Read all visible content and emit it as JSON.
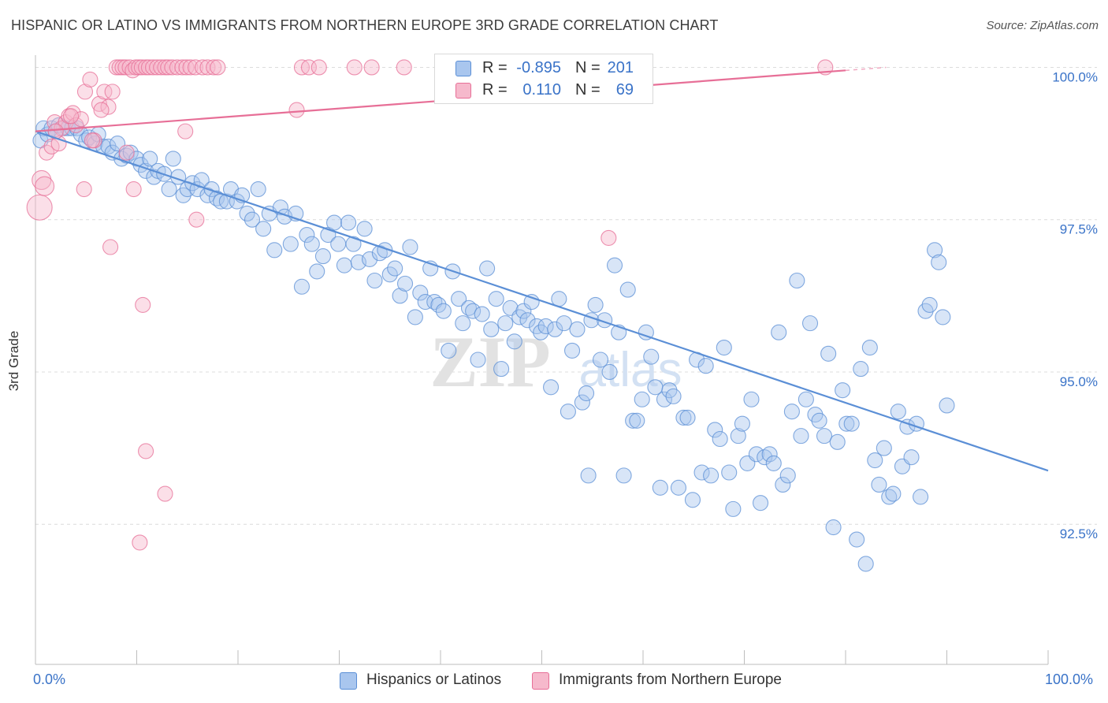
{
  "title": "HISPANIC OR LATINO VS IMMIGRANTS FROM NORTHERN EUROPE 3RD GRADE CORRELATION CHART",
  "source": "Source: ZipAtlas.com",
  "watermark": {
    "zip": "ZIP",
    "atlas": "atlas"
  },
  "colors": {
    "blue": "#5b8fd6",
    "blue_fill": "#a9c6ee",
    "pink": "#e76f97",
    "pink_fill": "#f6b9cc",
    "value_text": "#3a73c8"
  },
  "legend": {
    "rows": [
      {
        "r_label": "R =",
        "r_value": "-0.895",
        "n_label": "N =",
        "n_value": "201"
      },
      {
        "r_label": "R =",
        "r_value": "0.110",
        "n_label": "N =",
        "n_value": "69"
      }
    ]
  },
  "chart_data": {
    "type": "scatter",
    "title": "HISPANIC OR LATINO VS IMMIGRANTS FROM NORTHERN EUROPE 3RD GRADE CORRELATION CHART",
    "xlabel": "",
    "ylabel": "3rd Grade",
    "xlim": [
      0,
      100
    ],
    "ylim": [
      90.2,
      100.2
    ],
    "x_tick_labels": [
      "0.0%",
      "100.0%"
    ],
    "y_ticks": [
      {
        "value": 100.0,
        "label": "100.0%"
      },
      {
        "value": 97.5,
        "label": "97.5%"
      },
      {
        "value": 95.0,
        "label": "95.0%"
      },
      {
        "value": 92.5,
        "label": "92.5%"
      }
    ],
    "grid": true,
    "legend_position": "bottom",
    "series": [
      {
        "name": "Hispanics or Latinos",
        "color": "#5b8fd6",
        "trend": {
          "x": [
            0,
            100
          ],
          "y": [
            98.95,
            93.38
          ]
        },
        "points": [
          [
            0.5,
            98.8
          ],
          [
            0.8,
            99.0
          ],
          [
            1.2,
            98.9
          ],
          [
            1.6,
            99.0
          ],
          [
            2.0,
            98.95
          ],
          [
            2.3,
            99.05
          ],
          [
            2.8,
            99.0
          ],
          [
            3.2,
            99.0
          ],
          [
            3.6,
            99.0
          ],
          [
            4.1,
            99.0
          ],
          [
            4.5,
            98.9
          ],
          [
            5.0,
            98.8
          ],
          [
            5.3,
            98.85
          ],
          [
            5.9,
            98.75
          ],
          [
            6.2,
            98.9
          ],
          [
            6.7,
            98.7
          ],
          [
            7.2,
            98.7
          ],
          [
            7.6,
            98.6
          ],
          [
            8.1,
            98.75
          ],
          [
            8.5,
            98.5
          ],
          [
            9.0,
            98.55
          ],
          [
            9.4,
            98.6
          ],
          [
            10.0,
            98.5
          ],
          [
            10.4,
            98.4
          ],
          [
            10.9,
            98.3
          ],
          [
            11.3,
            98.5
          ],
          [
            11.7,
            98.2
          ],
          [
            12.1,
            98.3
          ],
          [
            12.7,
            98.25
          ],
          [
            13.2,
            98.0
          ],
          [
            13.6,
            98.5
          ],
          [
            14.1,
            98.2
          ],
          [
            14.6,
            97.9
          ],
          [
            15.0,
            98.0
          ],
          [
            15.5,
            98.1
          ],
          [
            16.0,
            98.0
          ],
          [
            16.4,
            98.15
          ],
          [
            17.0,
            97.9
          ],
          [
            17.4,
            98.0
          ],
          [
            17.9,
            97.85
          ],
          [
            18.3,
            97.8
          ],
          [
            18.9,
            97.8
          ],
          [
            19.3,
            98.0
          ],
          [
            19.9,
            97.8
          ],
          [
            20.4,
            97.9
          ],
          [
            20.9,
            97.6
          ],
          [
            21.4,
            97.5
          ],
          [
            22.0,
            98.0
          ],
          [
            22.5,
            97.35
          ],
          [
            23.1,
            97.6
          ],
          [
            23.6,
            97.0
          ],
          [
            24.2,
            97.7
          ],
          [
            24.6,
            97.55
          ],
          [
            25.2,
            97.1
          ],
          [
            25.7,
            97.6
          ],
          [
            26.3,
            96.4
          ],
          [
            26.8,
            97.25
          ],
          [
            27.3,
            97.1
          ],
          [
            27.8,
            96.65
          ],
          [
            28.4,
            96.9
          ],
          [
            28.9,
            97.25
          ],
          [
            29.5,
            97.45
          ],
          [
            29.9,
            97.1
          ],
          [
            30.5,
            96.75
          ],
          [
            30.9,
            97.45
          ],
          [
            31.4,
            97.1
          ],
          [
            31.9,
            96.8
          ],
          [
            32.5,
            97.35
          ],
          [
            33.0,
            96.85
          ],
          [
            33.5,
            96.5
          ],
          [
            34.0,
            96.95
          ],
          [
            34.5,
            97.0
          ],
          [
            35.0,
            96.6
          ],
          [
            35.5,
            96.7
          ],
          [
            36.0,
            96.25
          ],
          [
            36.5,
            96.45
          ],
          [
            37.0,
            97.05
          ],
          [
            37.5,
            95.9
          ],
          [
            38.0,
            96.3
          ],
          [
            38.5,
            96.15
          ],
          [
            39.0,
            96.7
          ],
          [
            39.4,
            96.15
          ],
          [
            39.8,
            96.1
          ],
          [
            40.3,
            96.0
          ],
          [
            40.8,
            95.35
          ],
          [
            41.2,
            96.65
          ],
          [
            41.8,
            96.2
          ],
          [
            42.2,
            95.8
          ],
          [
            42.8,
            96.05
          ],
          [
            43.2,
            96.0
          ],
          [
            43.7,
            95.2
          ],
          [
            44.1,
            95.95
          ],
          [
            44.6,
            96.7
          ],
          [
            45.0,
            95.7
          ],
          [
            45.5,
            96.2
          ],
          [
            46.0,
            95.05
          ],
          [
            46.4,
            95.8
          ],
          [
            46.9,
            96.05
          ],
          [
            47.3,
            95.5
          ],
          [
            47.8,
            95.9
          ],
          [
            48.2,
            96.0
          ],
          [
            48.6,
            95.85
          ],
          [
            49.0,
            96.15
          ],
          [
            49.5,
            95.75
          ],
          [
            49.9,
            95.65
          ],
          [
            50.4,
            95.75
          ],
          [
            50.9,
            94.75
          ],
          [
            51.3,
            95.7
          ],
          [
            51.7,
            96.2
          ],
          [
            52.2,
            95.8
          ],
          [
            52.6,
            94.35
          ],
          [
            53.0,
            95.35
          ],
          [
            53.5,
            95.7
          ],
          [
            54.0,
            94.5
          ],
          [
            54.4,
            94.65
          ],
          [
            54.9,
            95.85
          ],
          [
            55.3,
            96.1
          ],
          [
            55.8,
            95.2
          ],
          [
            56.2,
            95.85
          ],
          [
            56.7,
            95.0
          ],
          [
            57.2,
            96.75
          ],
          [
            57.6,
            95.65
          ],
          [
            58.1,
            93.3
          ],
          [
            58.5,
            96.35
          ],
          [
            59.0,
            94.2
          ],
          [
            59.4,
            94.2
          ],
          [
            59.9,
            94.55
          ],
          [
            60.3,
            95.65
          ],
          [
            60.8,
            95.25
          ],
          [
            61.2,
            94.75
          ],
          [
            61.7,
            93.1
          ],
          [
            62.1,
            94.55
          ],
          [
            62.6,
            94.7
          ],
          [
            63.0,
            94.6
          ],
          [
            63.5,
            93.1
          ],
          [
            64.0,
            94.25
          ],
          [
            64.4,
            94.25
          ],
          [
            64.9,
            92.9
          ],
          [
            65.3,
            95.2
          ],
          [
            65.8,
            93.35
          ],
          [
            66.2,
            95.1
          ],
          [
            66.7,
            93.3
          ],
          [
            67.1,
            94.05
          ],
          [
            67.6,
            93.9
          ],
          [
            68.0,
            95.4
          ],
          [
            68.5,
            93.35
          ],
          [
            68.9,
            92.75
          ],
          [
            69.4,
            93.95
          ],
          [
            69.8,
            94.15
          ],
          [
            70.3,
            93.5
          ],
          [
            70.7,
            94.55
          ],
          [
            71.2,
            93.65
          ],
          [
            71.6,
            92.85
          ],
          [
            72.0,
            93.6
          ],
          [
            72.5,
            93.65
          ],
          [
            72.9,
            93.5
          ],
          [
            73.4,
            95.65
          ],
          [
            73.8,
            93.15
          ],
          [
            74.3,
            93.3
          ],
          [
            74.7,
            94.35
          ],
          [
            75.2,
            96.5
          ],
          [
            75.6,
            93.95
          ],
          [
            76.1,
            94.55
          ],
          [
            76.5,
            95.8
          ],
          [
            77.0,
            94.3
          ],
          [
            77.4,
            94.2
          ],
          [
            77.9,
            93.95
          ],
          [
            78.3,
            95.3
          ],
          [
            78.8,
            92.45
          ],
          [
            79.2,
            93.85
          ],
          [
            79.7,
            94.7
          ],
          [
            80.1,
            94.15
          ],
          [
            80.6,
            94.15
          ],
          [
            81.1,
            92.25
          ],
          [
            81.5,
            95.05
          ],
          [
            82.0,
            91.85
          ],
          [
            82.4,
            95.4
          ],
          [
            82.9,
            93.55
          ],
          [
            83.3,
            93.15
          ],
          [
            83.8,
            93.75
          ],
          [
            84.3,
            92.95
          ],
          [
            84.7,
            93.0
          ],
          [
            85.2,
            94.35
          ],
          [
            85.6,
            93.45
          ],
          [
            86.1,
            94.1
          ],
          [
            86.5,
            93.6
          ],
          [
            87.0,
            94.15
          ],
          [
            87.4,
            92.95
          ],
          [
            87.9,
            96.0
          ],
          [
            88.3,
            96.1
          ],
          [
            88.8,
            97.0
          ],
          [
            89.2,
            96.8
          ],
          [
            89.6,
            95.9
          ],
          [
            90.0,
            94.45
          ],
          [
            54.6,
            93.3
          ]
        ]
      },
      {
        "name": "Immigrants from Northern Europe",
        "color": "#e76f97",
        "trend": {
          "x": [
            0,
            80
          ],
          "y": [
            98.95,
            99.95
          ]
        },
        "points": [
          [
            0.4,
            97.7
          ],
          [
            0.6,
            98.15
          ],
          [
            0.9,
            98.05
          ],
          [
            1.1,
            98.6
          ],
          [
            1.6,
            98.7
          ],
          [
            1.9,
            99.1
          ],
          [
            2.3,
            98.75
          ],
          [
            2.6,
            99.0
          ],
          [
            3.0,
            99.1
          ],
          [
            3.3,
            99.2
          ],
          [
            3.7,
            99.25
          ],
          [
            4.0,
            99.05
          ],
          [
            4.5,
            99.15
          ],
          [
            4.9,
            99.6
          ],
          [
            5.4,
            99.8
          ],
          [
            5.8,
            98.8
          ],
          [
            6.3,
            99.4
          ],
          [
            6.8,
            99.6
          ],
          [
            7.2,
            99.35
          ],
          [
            7.6,
            99.6
          ],
          [
            8.0,
            100.0
          ],
          [
            8.3,
            100.0
          ],
          [
            8.6,
            100.0
          ],
          [
            8.9,
            100.0
          ],
          [
            9.3,
            100.0
          ],
          [
            9.6,
            99.95
          ],
          [
            9.9,
            100.0
          ],
          [
            10.2,
            100.0
          ],
          [
            10.5,
            100.0
          ],
          [
            10.9,
            100.0
          ],
          [
            11.2,
            100.0
          ],
          [
            11.6,
            100.0
          ],
          [
            12.0,
            100.0
          ],
          [
            12.4,
            100.0
          ],
          [
            12.8,
            100.0
          ],
          [
            13.1,
            100.0
          ],
          [
            13.5,
            100.0
          ],
          [
            14.0,
            100.0
          ],
          [
            14.5,
            100.0
          ],
          [
            14.9,
            100.0
          ],
          [
            15.3,
            100.0
          ],
          [
            15.8,
            100.0
          ],
          [
            16.5,
            100.0
          ],
          [
            17.0,
            100.0
          ],
          [
            17.6,
            100.0
          ],
          [
            18.0,
            100.0
          ],
          [
            25.8,
            99.3
          ],
          [
            26.3,
            100.0
          ],
          [
            27.0,
            100.0
          ],
          [
            28.0,
            100.0
          ],
          [
            31.5,
            100.0
          ],
          [
            33.2,
            100.0
          ],
          [
            36.4,
            100.0
          ],
          [
            78.0,
            100.0
          ],
          [
            9.7,
            98.0
          ],
          [
            7.4,
            97.05
          ],
          [
            10.6,
            96.1
          ],
          [
            10.9,
            93.7
          ],
          [
            10.3,
            92.2
          ],
          [
            12.8,
            93.0
          ],
          [
            15.9,
            97.5
          ],
          [
            14.8,
            98.95
          ],
          [
            56.6,
            97.2
          ],
          [
            4.8,
            98.0
          ],
          [
            5.6,
            98.8
          ],
          [
            6.5,
            99.3
          ],
          [
            9.0,
            98.6
          ],
          [
            2.0,
            98.95
          ],
          [
            3.5,
            99.2
          ]
        ]
      }
    ]
  },
  "bottom_legend": {
    "items": [
      "Hispanics or Latinos",
      "Immigrants from Northern Europe"
    ]
  },
  "axis_labels": {
    "x_left": "0.0%",
    "x_right": "100.0%"
  }
}
